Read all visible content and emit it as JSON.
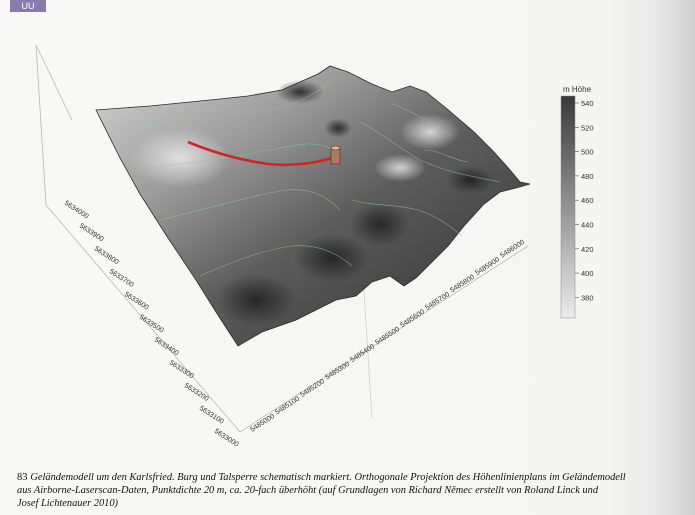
{
  "header_tab": "UU",
  "figure": {
    "legend_title": "m Höhe",
    "legend_ticks": [
      "540",
      "520",
      "500",
      "480",
      "460",
      "440",
      "420",
      "400",
      "380"
    ],
    "y_axis_ticks": [
      "5634000",
      "5633900",
      "5633800",
      "5633700",
      "5633600",
      "5633500",
      "5633400",
      "5633300",
      "5633200",
      "5633100",
      "5633000"
    ],
    "x_axis_ticks": [
      "5485000",
      "5485100",
      "5485200",
      "5485300",
      "5485400",
      "5485500",
      "5485600",
      "5485700",
      "5485800",
      "5485900",
      "5486000"
    ],
    "colors": {
      "terrain_dark": "#3a3a3a",
      "terrain_light": "#c8c8c8",
      "dam_line": "#d32424",
      "contour": "#7fd08a"
    }
  },
  "caption": {
    "number": "83",
    "line1": "Geländemodell um den Karlsfried. Burg und Talsperre schematisch markiert. Orthogonale Projektion des Höhenlinienplans im Geländemodell",
    "line2": "aus Airborne-Laserscan-Daten, Punktdichte 20 m, ca. 20-fach überhöht (auf Grundlagen von Richard Němec erstellt von Roland Linck und",
    "line3": "Josef Lichtenauer 2010)"
  }
}
